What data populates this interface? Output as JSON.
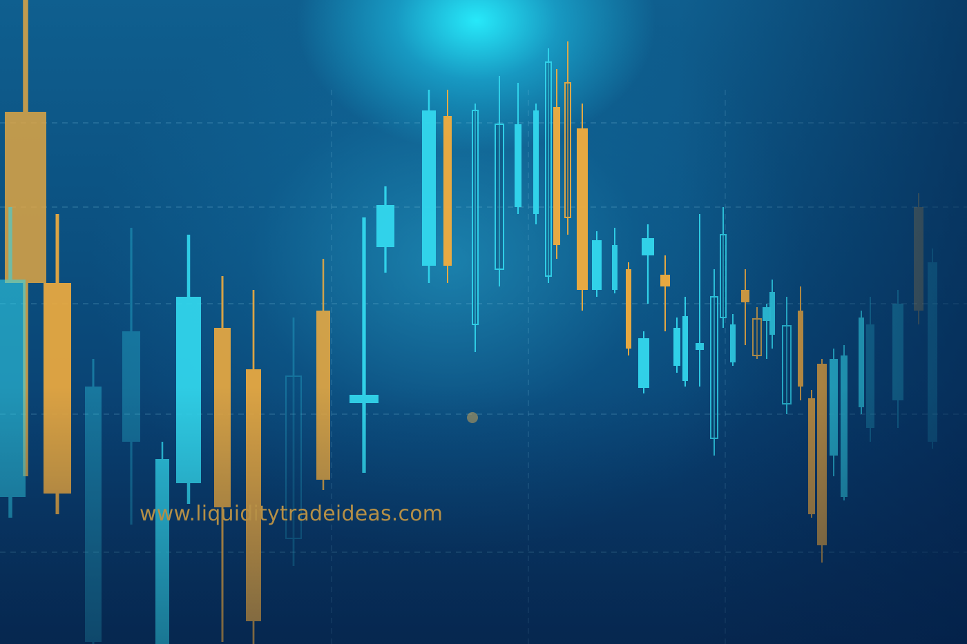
{
  "watermark": {
    "url": "www.liquiditytradeideas.com"
  },
  "colors": {
    "bullish": "#33d8ee",
    "bearish": "#f2ad3e",
    "background_top": "#0f5f8f",
    "background_bottom": "#082f5c",
    "url_text": "#e8b048"
  },
  "icons": [
    "candlestick-chart"
  ]
}
